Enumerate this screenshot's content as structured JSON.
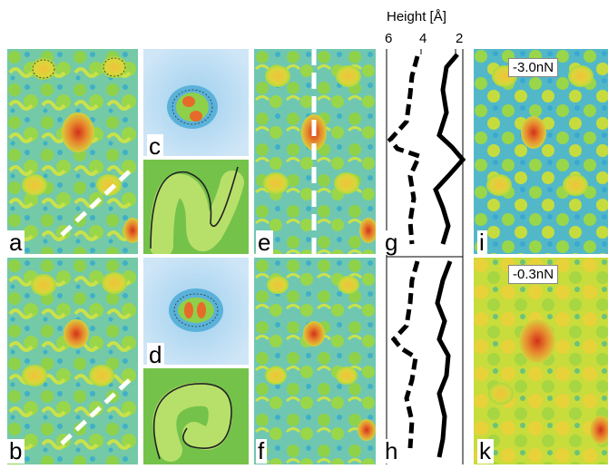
{
  "figure": {
    "panel_labels": {
      "a": "a",
      "b": "b",
      "c": "c",
      "d": "d",
      "e": "e",
      "f": "f",
      "g": "g",
      "h": "h",
      "i": "i",
      "k": "k"
    },
    "force_labels": {
      "top": "-3.0nN",
      "bottom": "-0.3nN"
    },
    "height_axis": {
      "title": "Height [Å]",
      "ticks": [
        "6",
        "4",
        "2"
      ]
    },
    "colors": {
      "background": "#ffffff",
      "profile_line": "#000000",
      "map_green": "#8fd24a",
      "map_yellow": "#e8d23a",
      "map_red": "#d23a1e",
      "map_cyan": "#3fb0c8"
    }
  }
}
